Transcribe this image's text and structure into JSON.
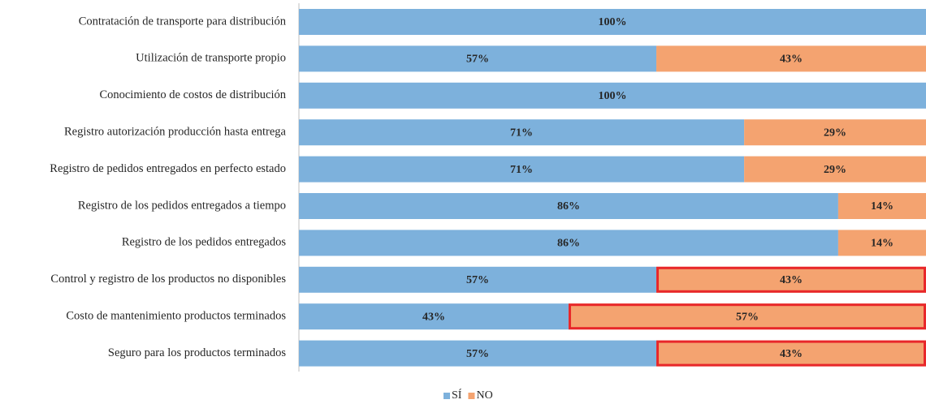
{
  "chart_data": {
    "type": "stacked-bar-horizontal",
    "categories": [
      "Contratación de transporte para distribución",
      "Utilización de transporte propio",
      "Conocimiento de costos de distribución",
      "Registro autorización producción hasta entrega",
      "Registro de pedidos entregados en perfecto estado",
      "Registro de los pedidos entregados a tiempo",
      "Registro de los pedidos entregados",
      "Control y registro de los productos no disponibles",
      "Costo de mantenimiento productos terminados",
      "Seguro para los productos terminados"
    ],
    "series": [
      {
        "name": "SÍ",
        "color": "#7db1dc",
        "values": [
          100,
          57,
          100,
          71,
          71,
          86,
          86,
          57,
          43,
          57
        ],
        "value_labels": [
          "100%",
          "57%",
          "100%",
          "71%",
          "71%",
          "86%",
          "86%",
          "57%",
          "43%",
          "57%"
        ]
      },
      {
        "name": "NO",
        "color": "#f4a370",
        "values": [
          0,
          43,
          0,
          29,
          29,
          14,
          14,
          43,
          57,
          43
        ],
        "value_labels": [
          null,
          "43%",
          null,
          "29%",
          "29%",
          "14%",
          "14%",
          "43%",
          "57%",
          "43%"
        ],
        "highlight": [
          false,
          false,
          false,
          false,
          false,
          false,
          false,
          true,
          true,
          true
        ],
        "highlight_color": "#e8272a"
      }
    ],
    "xlim": [
      0,
      100
    ],
    "legend": "bottom"
  }
}
